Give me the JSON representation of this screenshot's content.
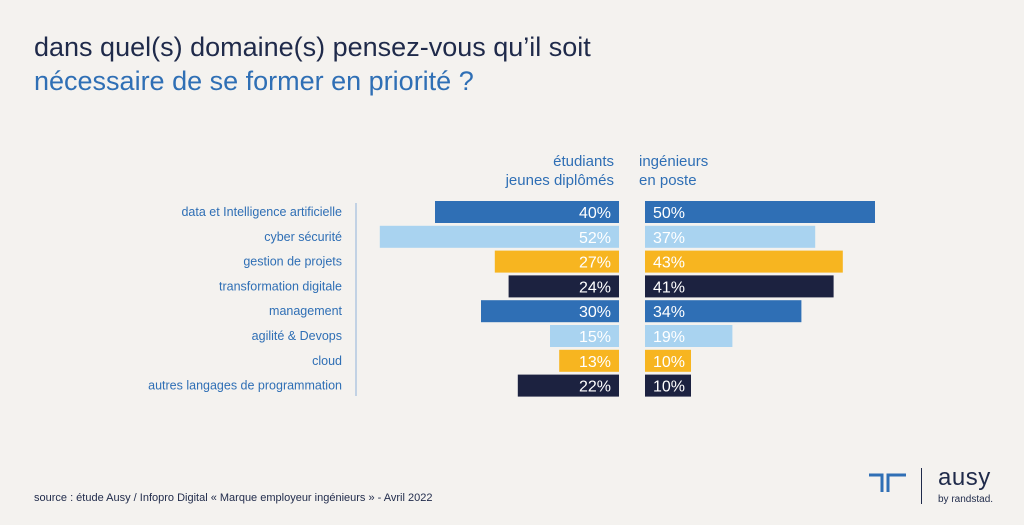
{
  "title": {
    "line1": "dans quel(s) domaine(s) pensez-vous qu’il soit",
    "line2": "nécessaire de se former en priorité ?"
  },
  "chart_data": {
    "type": "bar",
    "orientation": "horizontal-butterfly",
    "categories": [
      "data et Intelligence artificielle",
      "cyber sécurité",
      "gestion de projets",
      "transformation digitale",
      "management",
      "agilité & Devops",
      "cloud",
      "autres langages de programmation"
    ],
    "series": [
      {
        "name": "étudiants jeunes diplômés",
        "name_lines": [
          "étudiants",
          "jeunes diplômés"
        ],
        "values": [
          40,
          52,
          27,
          24,
          30,
          15,
          13,
          22
        ],
        "labels": [
          "40%",
          "52%",
          "27%",
          "24%",
          "30%",
          "15%",
          "13%",
          "22%"
        ]
      },
      {
        "name": "ingénieurs en poste",
        "name_lines": [
          "ingénieurs",
          "en poste"
        ],
        "values": [
          50,
          37,
          43,
          41,
          34,
          19,
          10,
          10
        ],
        "labels": [
          "50%",
          "37%",
          "43%",
          "41%",
          "34%",
          "19%",
          "10%",
          "10%"
        ]
      }
    ],
    "bar_colors": [
      "#2f6fb5",
      "#a9d3f0",
      "#f7b520",
      "#1c2240",
      "#2f6fb5",
      "#a9d3f0",
      "#f7b520",
      "#1c2240"
    ],
    "label_colors": [
      "#ffffff",
      "#ffffff",
      "#ffffff",
      "#ffffff",
      "#ffffff",
      "#ffffff",
      "#ffffff",
      "#ffffff"
    ],
    "category_color": "#2f6fb5",
    "header_color": "#2f6fb5"
  },
  "source": "source : étude Ausy / Infopro Digital « Marque employeur ingénieurs » - Avril 2022",
  "logo": {
    "wordmark": "ausy",
    "tagline": "by randstad."
  }
}
